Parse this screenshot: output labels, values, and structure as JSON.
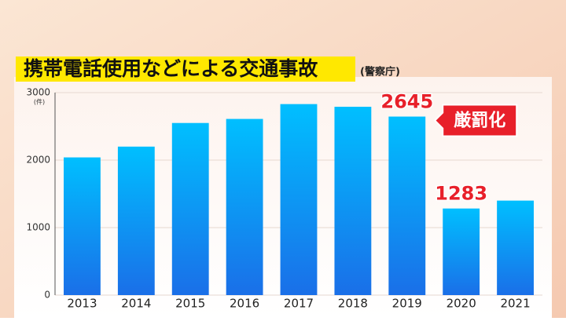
{
  "chart_data": {
    "type": "bar",
    "title": "携帯電話使用などによる交通事故",
    "source": "(警察庁)",
    "unit": "(件)",
    "categories": [
      "2013",
      "2014",
      "2015",
      "2016",
      "2017",
      "2018",
      "2019",
      "2020",
      "2021"
    ],
    "values": [
      2040,
      2200,
      2550,
      2610,
      2830,
      2790,
      2645,
      1283,
      1400
    ],
    "value_labels": [
      null,
      null,
      null,
      null,
      null,
      null,
      "2645",
      "1283",
      null
    ],
    "value_label_color": "#e8202a",
    "annotation": {
      "text": "厳罰化",
      "category": "2019",
      "color": "#e8202a"
    },
    "colors": [
      "#00bfff",
      "#1a6fe8"
    ],
    "ylim": [
      0,
      3000
    ],
    "yticks": [
      0,
      1000,
      2000,
      3000
    ],
    "grid": true
  }
}
